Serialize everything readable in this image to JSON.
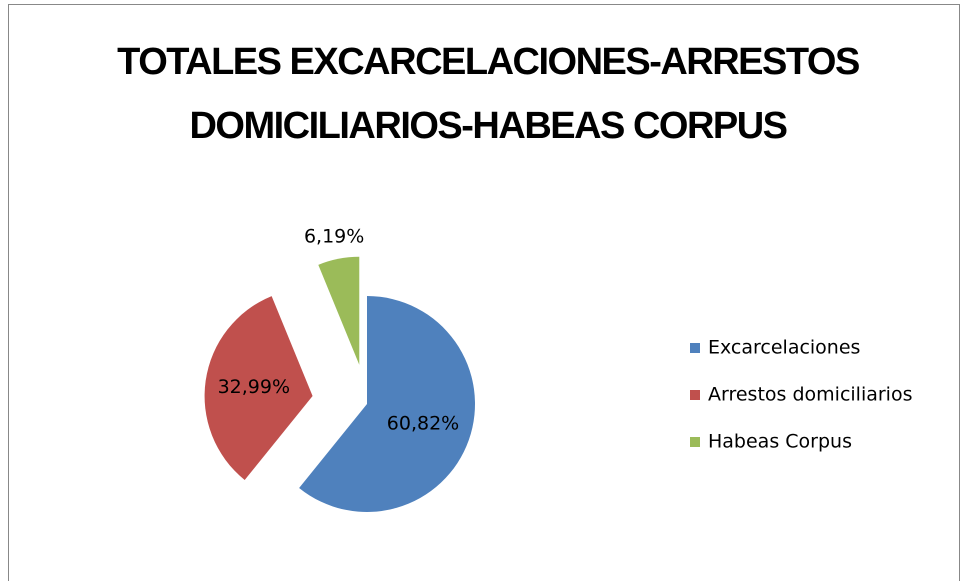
{
  "chart_data": {
    "type": "pie",
    "title": "TOTALES EXCARCELACIONES-ARRESTOS DOMICILIARIOS-HABEAS CORPUS",
    "categories": [
      "Excarcelaciones",
      "Arrestos domiciliarios",
      "Habeas Corpus"
    ],
    "values": [
      60.82,
      32.99,
      6.19
    ],
    "value_labels": [
      "60,82%",
      "32,99%",
      "6,19%"
    ],
    "colors": [
      "#4f81bd",
      "#c0504d",
      "#9bbb59"
    ],
    "legend": "right"
  }
}
